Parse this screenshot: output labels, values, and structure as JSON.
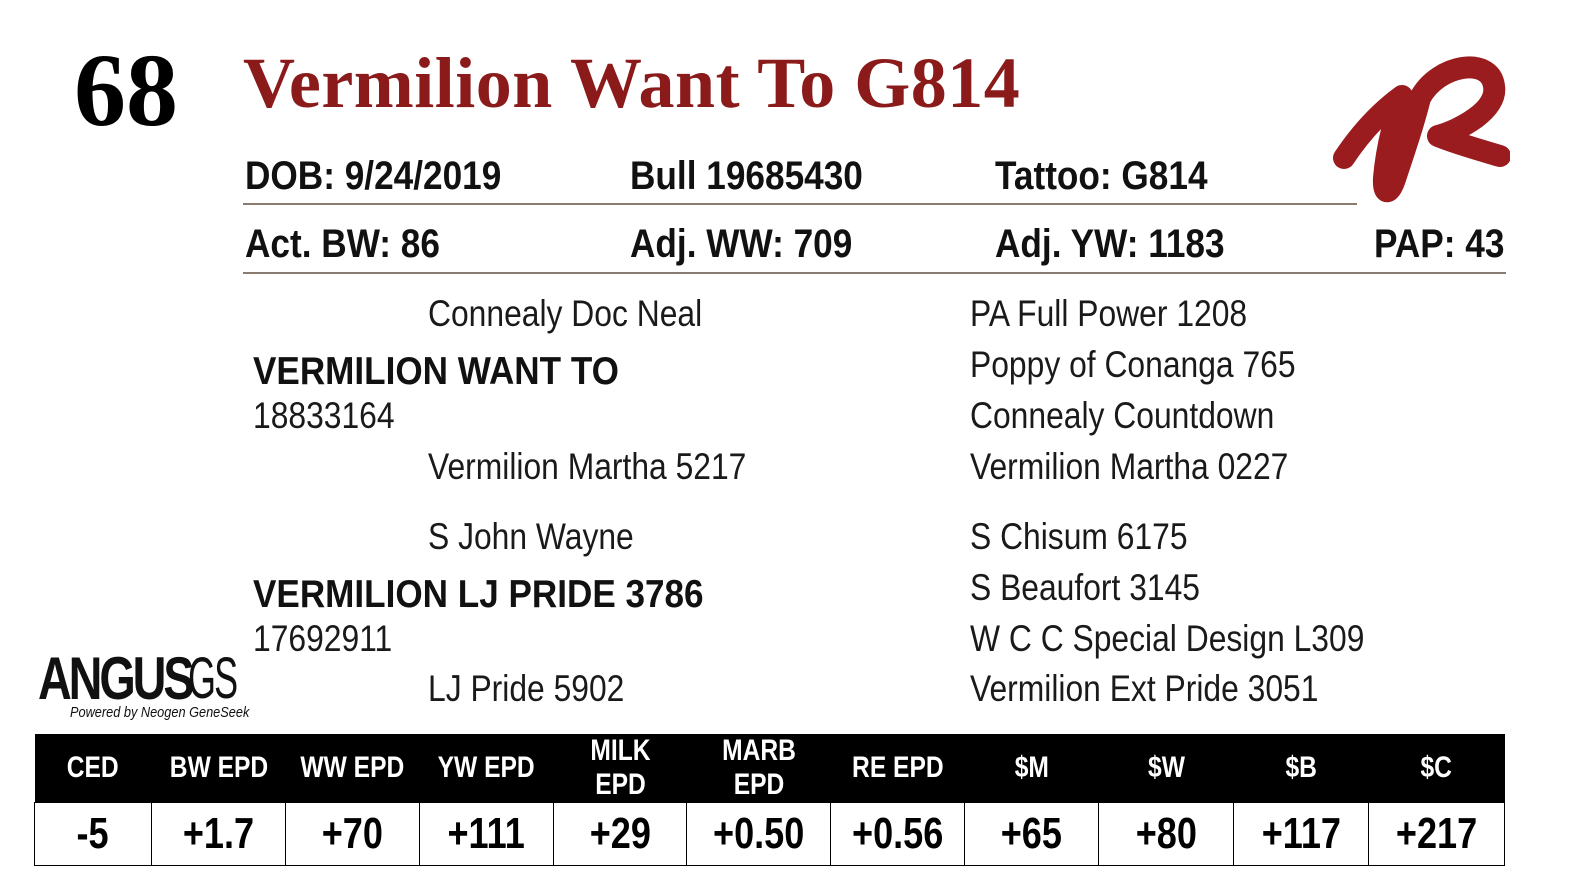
{
  "lot_number": "68",
  "animal_name": "Vermilion Want To G814",
  "info_row1": {
    "dob": "DOB:  9/24/2019",
    "registration": "Bull   19685430",
    "tattoo": "Tattoo:  G814"
  },
  "info_row2": {
    "birth_weight": "Act. BW: 86",
    "weaning_weight": "Adj. WW: 709",
    "yearling_weight": "Adj. YW: 1183",
    "pap": "PAP: 43"
  },
  "pedigree": {
    "sire_sire": "Connealy Doc Neal",
    "sire_name": "VERMILION WANT TO",
    "sire_reg": "18833164",
    "sire_dam": "Vermilion Martha 5217",
    "dam_sire": "S John Wayne",
    "dam_name": "VERMILION LJ PRIDE 3786",
    "dam_reg": "17692911",
    "dam_dam": "LJ Pride 5902",
    "right_column": [
      "PA Full Power 1208",
      "Poppy of Conanga 765",
      "Connealy Countdown",
      "Vermilion Martha 0227",
      "S Chisum 6175",
      "S Beaufort 3145",
      "W C C Special Design L309",
      "Vermilion Ext Pride 3051"
    ]
  },
  "brand_logo": {
    "main": "ANGUS",
    "suffix": "GS",
    "tagline": "Powered by Neogen GeneSeek"
  },
  "epd_table": {
    "headers": [
      "CED",
      "BW EPD",
      "WW EPD",
      "YW EPD",
      "MILK EPD",
      "MARB EPD",
      "RE EPD",
      "$M",
      "$W",
      "$B",
      "$C"
    ],
    "values": [
      "-5",
      "+1.7",
      "+70",
      "+111",
      "+29",
      "+0.50",
      "+0.56",
      "+65",
      "+80",
      "+117",
      "+217"
    ]
  },
  "colors": {
    "title_red": "#8b1a1a",
    "logo_red": "#9b1c1f",
    "header_bg": "#000000",
    "rule": "#8a7c70"
  }
}
